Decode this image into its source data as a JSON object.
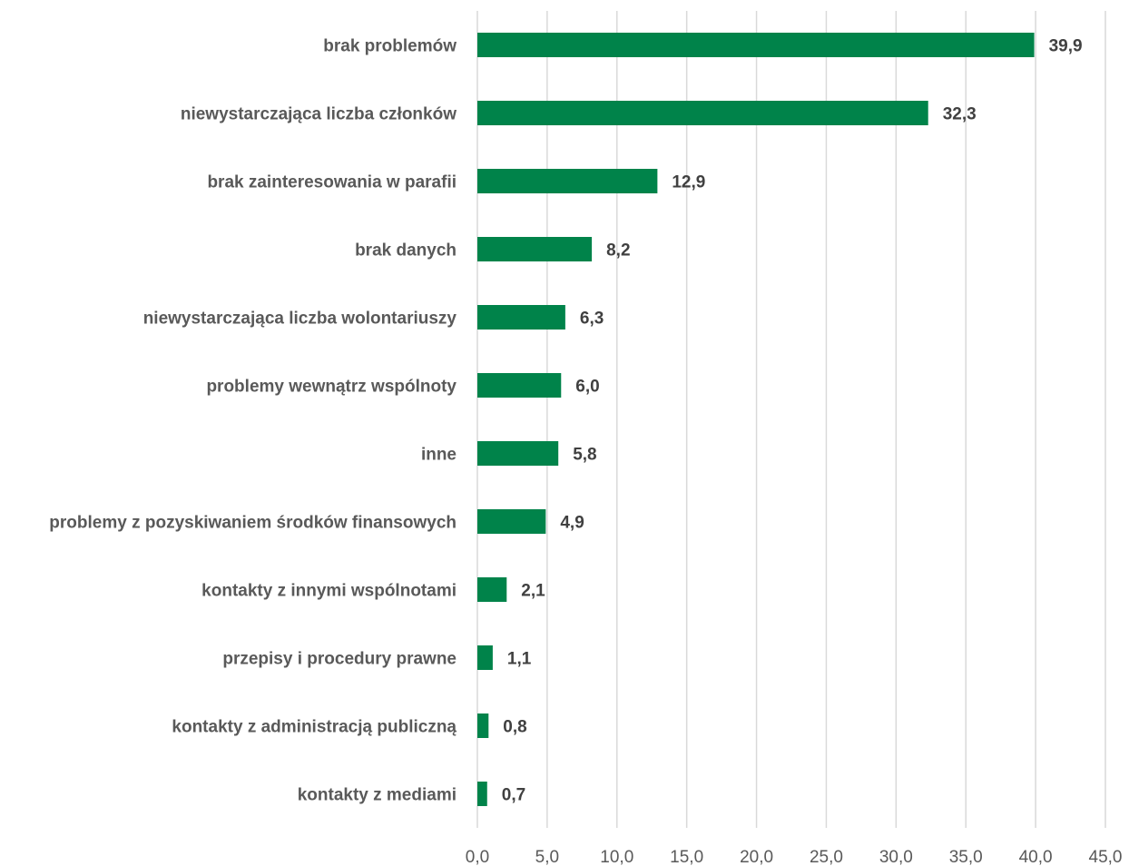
{
  "chart_data": {
    "type": "bar",
    "orientation": "horizontal",
    "categories": [
      "brak problemów",
      "niewystarczająca liczba członków",
      "brak zainteresowania w parafii",
      "brak danych",
      "niewystarczająca liczba wolontariuszy",
      "problemy wewnątrz wspólnoty",
      "inne",
      "problemy z pozyskiwaniem środków finansowych",
      "kontakty z innymi wspólnotami",
      "przepisy i procedury prawne",
      "kontakty z administracją publiczną",
      "kontakty z mediami"
    ],
    "values": [
      39.9,
      32.3,
      12.9,
      8.2,
      6.3,
      6.0,
      5.8,
      4.9,
      2.1,
      1.1,
      0.8,
      0.7
    ],
    "value_labels": [
      "39,9",
      "32,3",
      "12,9",
      "8,2",
      "6,3",
      "6,0",
      "5,8",
      "4,9",
      "2,1",
      "1,1",
      "0,8",
      "0,7"
    ],
    "xlim": [
      0,
      45
    ],
    "x_ticks": [
      0,
      5,
      10,
      15,
      20,
      25,
      30,
      35,
      40,
      45
    ],
    "x_tick_labels": [
      "0,0",
      "5,0",
      "10,0",
      "15,0",
      "20,0",
      "25,0",
      "30,0",
      "35,0",
      "40,0",
      "45,0"
    ],
    "title": "",
    "xlabel": "",
    "ylabel": "",
    "grid": "vertical",
    "legend": "none",
    "bar_color": "#00834a"
  }
}
